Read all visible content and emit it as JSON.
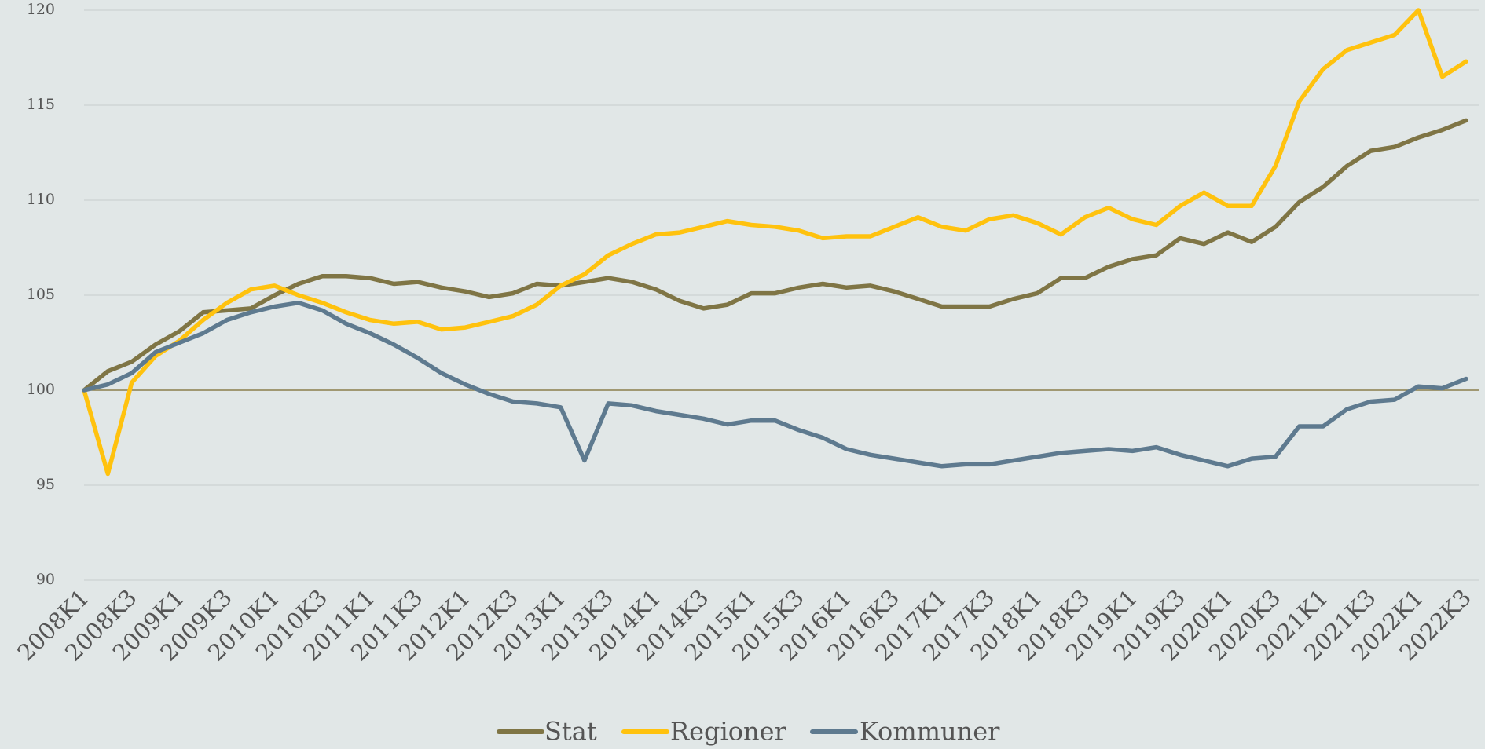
{
  "chart_data": {
    "type": "line",
    "categories": [
      "2008K1",
      null,
      "2008K3",
      null,
      "2009K1",
      null,
      "2009K3",
      null,
      "2010K1",
      null,
      "2010K3",
      null,
      "2011K1",
      null,
      "2011K3",
      null,
      "2012K1",
      null,
      "2012K3",
      null,
      "2013K1",
      null,
      "2013K3",
      null,
      "2014K1",
      null,
      "2014K3",
      null,
      "2015K1",
      null,
      "2015K3",
      null,
      "2016K1",
      null,
      "2016K3",
      null,
      "2017K1",
      null,
      "2017K3",
      null,
      "2018K1",
      null,
      "2018K3",
      null,
      "2019K1",
      null,
      "2019K3",
      null,
      "2020K1",
      null,
      "2020K3",
      null,
      "2021K1",
      null,
      "2021K3",
      null,
      "2022K1",
      null,
      "2022K3"
    ],
    "series": [
      {
        "name": "Stat",
        "color": "#7f7545",
        "values": [
          100,
          101.0,
          101.5,
          102.4,
          103.1,
          104.1,
          104.2,
          104.3,
          105.0,
          105.6,
          106.0,
          106.0,
          105.9,
          105.6,
          105.7,
          105.4,
          105.2,
          104.9,
          105.1,
          105.6,
          105.5,
          105.7,
          105.9,
          105.7,
          105.3,
          104.7,
          104.3,
          104.5,
          105.1,
          105.1,
          105.4,
          105.6,
          105.4,
          105.5,
          105.2,
          104.8,
          104.4,
          104.4,
          104.4,
          104.8,
          105.1,
          105.9,
          105.9,
          106.5,
          106.9,
          107.1,
          108.0,
          107.7,
          108.3,
          107.8,
          108.6,
          109.9,
          110.7,
          111.8,
          112.6,
          112.8,
          113.3,
          113.7,
          114.2
        ]
      },
      {
        "name": "Regioner",
        "color": "#ffc20e",
        "values": [
          100,
          95.6,
          100.4,
          101.8,
          102.6,
          103.7,
          104.6,
          105.3,
          105.5,
          105.0,
          104.6,
          104.1,
          103.7,
          103.5,
          103.6,
          103.2,
          103.3,
          103.6,
          103.9,
          104.5,
          105.5,
          106.1,
          107.1,
          107.7,
          108.2,
          108.3,
          108.6,
          108.9,
          108.7,
          108.6,
          108.4,
          108.0,
          108.1,
          108.1,
          108.6,
          109.1,
          108.6,
          108.4,
          109.0,
          109.2,
          108.8,
          108.2,
          109.1,
          109.6,
          109.0,
          108.7,
          109.7,
          110.4,
          109.7,
          109.7,
          111.8,
          115.2,
          116.9,
          117.9,
          118.3,
          118.7,
          120.0,
          116.5,
          117.3
        ]
      },
      {
        "name": "Kommuner",
        "color": "#5e7a8f",
        "values": [
          100,
          100.3,
          100.9,
          102.0,
          102.5,
          103.0,
          103.7,
          104.1,
          104.4,
          104.6,
          104.2,
          103.5,
          103.0,
          102.4,
          101.7,
          100.9,
          100.3,
          99.8,
          99.4,
          99.3,
          99.1,
          96.3,
          99.3,
          99.2,
          98.9,
          98.7,
          98.5,
          98.2,
          98.4,
          98.4,
          97.9,
          97.5,
          96.9,
          96.6,
          96.4,
          96.2,
          96.0,
          96.1,
          96.1,
          96.3,
          96.5,
          96.7,
          96.8,
          96.9,
          96.8,
          97.0,
          96.6,
          96.3,
          96.0,
          96.4,
          96.5,
          98.1,
          98.1,
          99.0,
          99.4,
          99.5,
          100.2,
          100.1,
          100.6
        ]
      }
    ],
    "ylim": [
      90,
      120
    ],
    "yticks": [
      90,
      95,
      100,
      105,
      110,
      115,
      120
    ],
    "grid": true,
    "legend": "bottom"
  }
}
